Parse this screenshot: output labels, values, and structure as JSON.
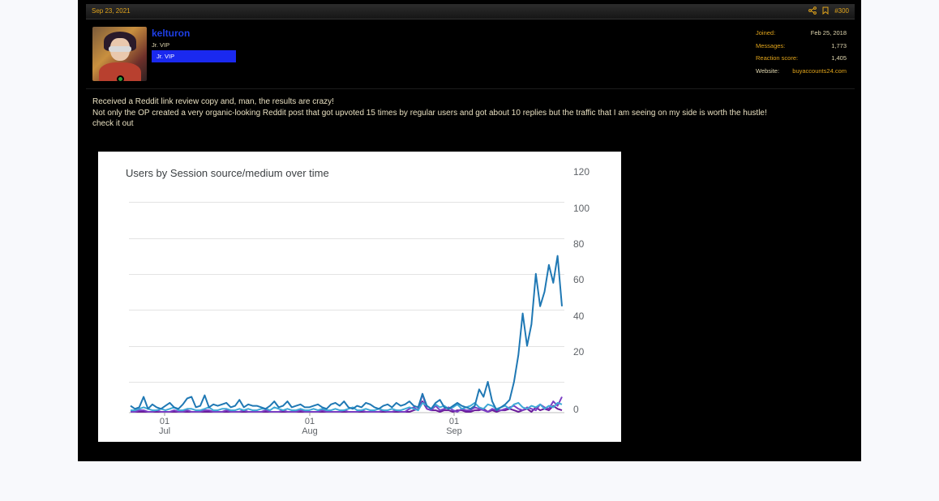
{
  "post": {
    "date": "Sep 23, 2021",
    "number": "#300",
    "icons": [
      "share-icon",
      "bookmark-icon"
    ]
  },
  "user": {
    "name": "kelturon",
    "title": "Jr. VIP",
    "banner": "Jr. VIP"
  },
  "stats": [
    {
      "label": "Joined:",
      "value": "Feb 25, 2018"
    },
    {
      "label": "Messages:",
      "value": "1,773"
    },
    {
      "label": "Reaction score:",
      "value": "1,405"
    },
    {
      "label": "Website:",
      "value": "buyaccounts24.com"
    }
  ],
  "message": {
    "lines": [
      "Received a Reddit link review copy and, man, the results are crazy!",
      "Not only the OP created a very organic-looking Reddit post that got upvoted 15 times by regular users and got about 10 replies but the traffic that I am seeing on my side is worth the hustle!",
      "check it out"
    ]
  },
  "colors": {
    "accent": "#e1a41b",
    "username": "#1e3fe6",
    "banner": "#1a29ef"
  },
  "chart_data": {
    "type": "line",
    "title": "Users by Session source/medium over time",
    "x_ticks": [
      {
        "day": "01",
        "month": "Jul"
      },
      {
        "day": "01",
        "month": "Aug"
      },
      {
        "day": "01",
        "month": "Sep"
      }
    ],
    "y_ticks": [
      0,
      20,
      40,
      60,
      80,
      100,
      120
    ],
    "ylim": [
      0,
      120
    ],
    "x_range_days": [
      0,
      103
    ],
    "series": [
      {
        "color": "#1f78b4",
        "values": [
          4,
          2,
          3,
          10,
          2,
          5,
          3,
          2,
          4,
          6,
          3,
          2,
          5,
          9,
          10,
          3,
          4,
          11,
          3,
          5,
          4,
          5,
          6,
          3,
          4,
          8,
          3,
          5,
          4,
          4,
          3,
          2,
          4,
          7,
          3,
          4,
          7,
          3,
          4,
          5,
          3,
          3,
          4,
          5,
          3,
          2,
          5,
          6,
          4,
          7,
          3,
          2,
          4,
          3,
          6,
          5,
          3,
          2,
          4,
          5,
          3,
          6,
          4,
          5,
          7,
          4,
          3,
          12,
          4,
          2,
          6,
          8,
          3,
          2,
          4,
          6,
          4,
          3,
          2,
          4,
          15,
          10,
          20,
          7,
          1,
          3,
          5,
          8,
          20,
          35,
          58,
          40,
          52,
          80,
          62,
          70,
          85,
          75,
          90,
          62
        ]
      },
      {
        "color": "#3fa9d6",
        "values": [
          1,
          1,
          2,
          3,
          2,
          1,
          1,
          2,
          1,
          2,
          3,
          1,
          1,
          2,
          2,
          1,
          1,
          2,
          3,
          1,
          1,
          2,
          2,
          1,
          1,
          2,
          1,
          2,
          1,
          1,
          2,
          2,
          1,
          3,
          2,
          1,
          2,
          1,
          1,
          2,
          1,
          1,
          2,
          1,
          2,
          1,
          1,
          2,
          1,
          1,
          2,
          3,
          1,
          1,
          2,
          1,
          1,
          2,
          1,
          1,
          2,
          1,
          1,
          2,
          3,
          2,
          1,
          6,
          4,
          2,
          5,
          3,
          4,
          2,
          3,
          5,
          2,
          3,
          4,
          6,
          3,
          2,
          5,
          4,
          2,
          3,
          4,
          2,
          5,
          6,
          3,
          2,
          4,
          3,
          5,
          2,
          4,
          3,
          6,
          5
        ]
      },
      {
        "color": "#7b3fc4",
        "values": [
          0,
          0,
          1,
          1,
          0,
          0,
          1,
          0,
          0,
          0,
          1,
          0,
          0,
          1,
          0,
          0,
          0,
          1,
          1,
          0,
          0,
          0,
          1,
          0,
          0,
          0,
          1,
          0,
          0,
          0,
          0,
          1,
          0,
          0,
          0,
          1,
          0,
          0,
          0,
          1,
          0,
          0,
          0,
          0,
          1,
          0,
          0,
          0,
          0,
          1,
          0,
          0,
          0,
          1,
          0,
          0,
          0,
          0,
          1,
          0,
          0,
          1,
          0,
          0,
          2,
          3,
          1,
          12,
          2,
          1,
          4,
          1,
          2,
          3,
          1,
          0,
          2,
          1,
          1,
          3,
          2,
          1,
          0,
          2,
          1,
          1,
          2,
          3,
          4,
          2,
          1,
          3,
          2,
          1,
          5,
          3,
          2,
          7,
          4,
          10
        ]
      },
      {
        "color": "#6a1b9a",
        "values": [
          0,
          0,
          0,
          0,
          0,
          0,
          0,
          0,
          0,
          0,
          0,
          0,
          0,
          0,
          0,
          0,
          0,
          0,
          0,
          0,
          0,
          0,
          0,
          0,
          0,
          0,
          0,
          0,
          0,
          0,
          0,
          0,
          0,
          0,
          0,
          0,
          0,
          0,
          0,
          0,
          0,
          0,
          0,
          0,
          0,
          0,
          0,
          0,
          0,
          0,
          0,
          0,
          0,
          0,
          0,
          0,
          0,
          0,
          0,
          0,
          0,
          0,
          0,
          0,
          0,
          1,
          2,
          7,
          2,
          1,
          1,
          0,
          1,
          1,
          0,
          1,
          1,
          0,
          0,
          1,
          1,
          2,
          0,
          1,
          0,
          1,
          1,
          2,
          1,
          0,
          1,
          2,
          0,
          3,
          1,
          2,
          1,
          4,
          2,
          1
        ]
      }
    ]
  }
}
